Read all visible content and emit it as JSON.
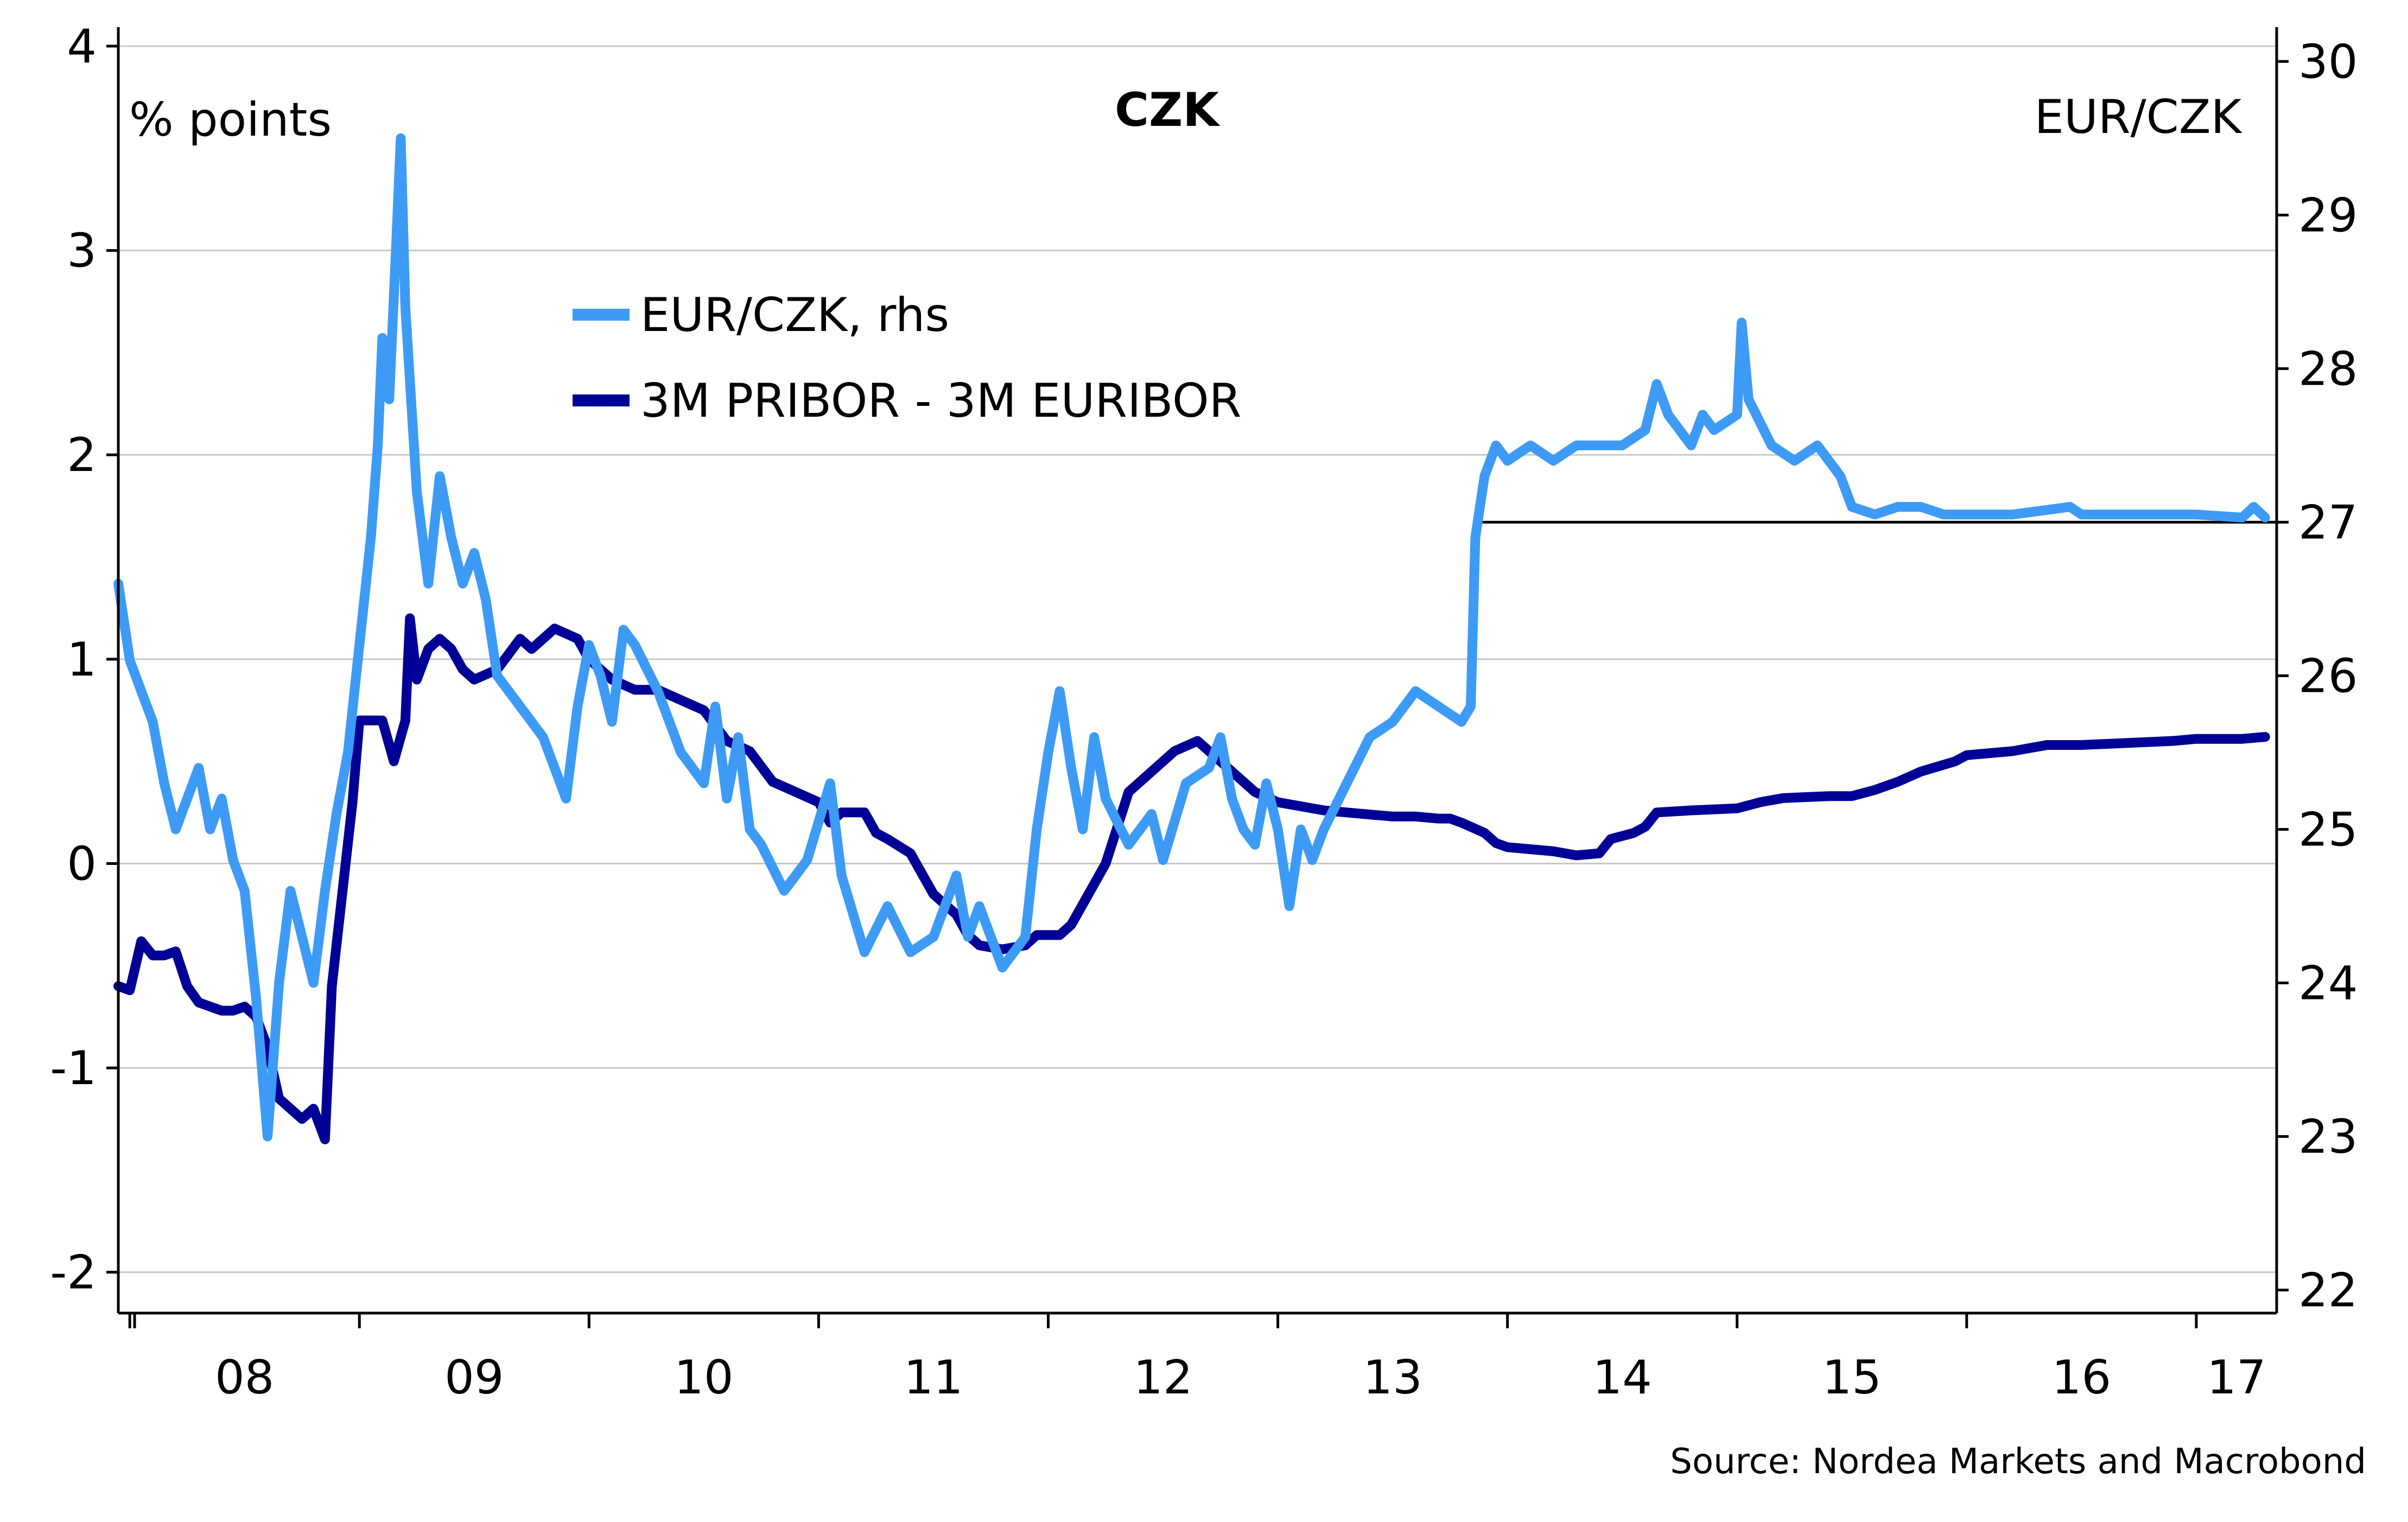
{
  "chart_data": {
    "type": "line",
    "title": "CZK",
    "left_axis_label": "% points",
    "right_axis_label": "EUR/CZK",
    "source": "Source: Nordea Markets and Macrobond",
    "grid": true,
    "legend_position": "top-left",
    "x_tick_labels": [
      "08",
      "09",
      "10",
      "11",
      "12",
      "13",
      "14",
      "15",
      "16",
      "17"
    ],
    "x_range": [
      2007.95,
      2017.35
    ],
    "y_left_ticks": [
      "4",
      "3",
      "2",
      "1",
      "0",
      "-1",
      "-2"
    ],
    "y_left_range": [
      -2.2,
      4.0
    ],
    "y_right_ticks": [
      "30",
      "29",
      "28",
      "27",
      "26",
      "25",
      "24",
      "23",
      "22"
    ],
    "y_right_range": [
      21.85,
      30.1
    ],
    "reference_line": {
      "x_start": 2013.85,
      "x_end": 2017.35,
      "value": 27.0,
      "axis": "right"
    },
    "series": [
      {
        "name": "EUR/CZK, rhs",
        "axis": "right",
        "color": "#3d9bf5",
        "points": [
          [
            2007.95,
            26.6
          ],
          [
            2008.0,
            26.1
          ],
          [
            2008.05,
            25.9
          ],
          [
            2008.1,
            25.7
          ],
          [
            2008.15,
            25.3
          ],
          [
            2008.2,
            25.0
          ],
          [
            2008.25,
            25.2
          ],
          [
            2008.3,
            25.4
          ],
          [
            2008.35,
            25.0
          ],
          [
            2008.4,
            25.2
          ],
          [
            2008.45,
            24.8
          ],
          [
            2008.5,
            24.6
          ],
          [
            2008.55,
            23.9
          ],
          [
            2008.6,
            23.0
          ],
          [
            2008.65,
            24.0
          ],
          [
            2008.7,
            24.6
          ],
          [
            2008.75,
            24.3
          ],
          [
            2008.8,
            24.0
          ],
          [
            2008.85,
            24.6
          ],
          [
            2008.9,
            25.1
          ],
          [
            2008.95,
            25.5
          ],
          [
            2009.0,
            26.2
          ],
          [
            2009.05,
            26.9
          ],
          [
            2009.08,
            27.5
          ],
          [
            2009.1,
            28.2
          ],
          [
            2009.13,
            27.8
          ],
          [
            2009.16,
            28.8
          ],
          [
            2009.18,
            29.5
          ],
          [
            2009.2,
            28.4
          ],
          [
            2009.25,
            27.2
          ],
          [
            2009.3,
            26.6
          ],
          [
            2009.35,
            27.3
          ],
          [
            2009.4,
            26.9
          ],
          [
            2009.45,
            26.6
          ],
          [
            2009.5,
            26.8
          ],
          [
            2009.55,
            26.5
          ],
          [
            2009.6,
            26.0
          ],
          [
            2009.7,
            25.8
          ],
          [
            2009.8,
            25.6
          ],
          [
            2009.9,
            25.2
          ],
          [
            2009.95,
            25.8
          ],
          [
            2010.0,
            26.2
          ],
          [
            2010.05,
            26.0
          ],
          [
            2010.1,
            25.7
          ],
          [
            2010.15,
            26.3
          ],
          [
            2010.2,
            26.2
          ],
          [
            2010.3,
            25.9
          ],
          [
            2010.4,
            25.5
          ],
          [
            2010.5,
            25.3
          ],
          [
            2010.55,
            25.8
          ],
          [
            2010.6,
            25.2
          ],
          [
            2010.65,
            25.6
          ],
          [
            2010.7,
            25.0
          ],
          [
            2010.75,
            24.9
          ],
          [
            2010.85,
            24.6
          ],
          [
            2010.95,
            24.8
          ],
          [
            2011.05,
            25.3
          ],
          [
            2011.1,
            24.7
          ],
          [
            2011.2,
            24.2
          ],
          [
            2011.3,
            24.5
          ],
          [
            2011.4,
            24.2
          ],
          [
            2011.5,
            24.3
          ],
          [
            2011.6,
            24.7
          ],
          [
            2011.65,
            24.3
          ],
          [
            2011.7,
            24.5
          ],
          [
            2011.8,
            24.1
          ],
          [
            2011.9,
            24.3
          ],
          [
            2011.95,
            25.0
          ],
          [
            2012.0,
            25.5
          ],
          [
            2012.05,
            25.9
          ],
          [
            2012.1,
            25.4
          ],
          [
            2012.15,
            25.0
          ],
          [
            2012.2,
            25.6
          ],
          [
            2012.25,
            25.2
          ],
          [
            2012.35,
            24.9
          ],
          [
            2012.45,
            25.1
          ],
          [
            2012.5,
            24.8
          ],
          [
            2012.6,
            25.3
          ],
          [
            2012.7,
            25.4
          ],
          [
            2012.75,
            25.6
          ],
          [
            2012.8,
            25.2
          ],
          [
            2012.85,
            25.0
          ],
          [
            2012.9,
            24.9
          ],
          [
            2012.95,
            25.3
          ],
          [
            2013.0,
            25.0
          ],
          [
            2013.05,
            24.5
          ],
          [
            2013.1,
            25.0
          ],
          [
            2013.15,
            24.8
          ],
          [
            2013.2,
            25.0
          ],
          [
            2013.3,
            25.3
          ],
          [
            2013.4,
            25.6
          ],
          [
            2013.5,
            25.7
          ],
          [
            2013.6,
            25.9
          ],
          [
            2013.7,
            25.8
          ],
          [
            2013.8,
            25.7
          ],
          [
            2013.84,
            25.8
          ],
          [
            2013.86,
            26.9
          ],
          [
            2013.9,
            27.3
          ],
          [
            2013.95,
            27.5
          ],
          [
            2014.0,
            27.4
          ],
          [
            2014.1,
            27.5
          ],
          [
            2014.2,
            27.4
          ],
          [
            2014.3,
            27.5
          ],
          [
            2014.4,
            27.5
          ],
          [
            2014.5,
            27.5
          ],
          [
            2014.6,
            27.6
          ],
          [
            2014.65,
            27.9
          ],
          [
            2014.7,
            27.7
          ],
          [
            2014.8,
            27.5
          ],
          [
            2014.85,
            27.7
          ],
          [
            2014.9,
            27.6
          ],
          [
            2015.0,
            27.7
          ],
          [
            2015.02,
            28.3
          ],
          [
            2015.05,
            27.8
          ],
          [
            2015.15,
            27.5
          ],
          [
            2015.25,
            27.4
          ],
          [
            2015.35,
            27.5
          ],
          [
            2015.45,
            27.3
          ],
          [
            2015.5,
            27.1
          ],
          [
            2015.6,
            27.05
          ],
          [
            2015.7,
            27.1
          ],
          [
            2015.8,
            27.1
          ],
          [
            2015.9,
            27.05
          ],
          [
            2016.0,
            27.05
          ],
          [
            2016.2,
            27.05
          ],
          [
            2016.45,
            27.1
          ],
          [
            2016.5,
            27.05
          ],
          [
            2016.8,
            27.05
          ],
          [
            2017.0,
            27.05
          ],
          [
            2017.2,
            27.03
          ],
          [
            2017.25,
            27.1
          ],
          [
            2017.3,
            27.03
          ]
        ]
      },
      {
        "name": "3M PRIBOR - 3M EURIBOR",
        "axis": "left",
        "color": "#000096",
        "points": [
          [
            2007.95,
            -0.6
          ],
          [
            2008.0,
            -0.62
          ],
          [
            2008.05,
            -0.38
          ],
          [
            2008.1,
            -0.45
          ],
          [
            2008.15,
            -0.45
          ],
          [
            2008.2,
            -0.43
          ],
          [
            2008.25,
            -0.6
          ],
          [
            2008.3,
            -0.68
          ],
          [
            2008.35,
            -0.7
          ],
          [
            2008.4,
            -0.72
          ],
          [
            2008.45,
            -0.72
          ],
          [
            2008.5,
            -0.7
          ],
          [
            2008.55,
            -0.75
          ],
          [
            2008.6,
            -0.9
          ],
          [
            2008.65,
            -1.15
          ],
          [
            2008.7,
            -1.2
          ],
          [
            2008.75,
            -1.25
          ],
          [
            2008.8,
            -1.2
          ],
          [
            2008.85,
            -1.35
          ],
          [
            2008.88,
            -0.6
          ],
          [
            2008.92,
            -0.2
          ],
          [
            2008.97,
            0.3
          ],
          [
            2009.0,
            0.7
          ],
          [
            2009.05,
            0.7
          ],
          [
            2009.1,
            0.7
          ],
          [
            2009.15,
            0.5
          ],
          [
            2009.2,
            0.7
          ],
          [
            2009.22,
            1.2
          ],
          [
            2009.25,
            0.9
          ],
          [
            2009.3,
            1.05
          ],
          [
            2009.35,
            1.1
          ],
          [
            2009.4,
            1.05
          ],
          [
            2009.45,
            0.95
          ],
          [
            2009.5,
            0.9
          ],
          [
            2009.6,
            0.95
          ],
          [
            2009.7,
            1.1
          ],
          [
            2009.75,
            1.05
          ],
          [
            2009.85,
            1.15
          ],
          [
            2009.95,
            1.1
          ],
          [
            2010.0,
            1.0
          ],
          [
            2010.1,
            0.9
          ],
          [
            2010.2,
            0.85
          ],
          [
            2010.3,
            0.85
          ],
          [
            2010.4,
            0.8
          ],
          [
            2010.5,
            0.75
          ],
          [
            2010.6,
            0.6
          ],
          [
            2010.7,
            0.55
          ],
          [
            2010.8,
            0.4
          ],
          [
            2010.9,
            0.35
          ],
          [
            2011.0,
            0.3
          ],
          [
            2011.05,
            0.2
          ],
          [
            2011.1,
            0.25
          ],
          [
            2011.2,
            0.25
          ],
          [
            2011.25,
            0.15
          ],
          [
            2011.3,
            0.12
          ],
          [
            2011.4,
            0.05
          ],
          [
            2011.5,
            -0.15
          ],
          [
            2011.6,
            -0.25
          ],
          [
            2011.65,
            -0.35
          ],
          [
            2011.7,
            -0.4
          ],
          [
            2011.8,
            -0.42
          ],
          [
            2011.9,
            -0.4
          ],
          [
            2011.95,
            -0.35
          ],
          [
            2012.05,
            -0.35
          ],
          [
            2012.1,
            -0.3
          ],
          [
            2012.15,
            -0.2
          ],
          [
            2012.25,
            0.0
          ],
          [
            2012.35,
            0.35
          ],
          [
            2012.45,
            0.45
          ],
          [
            2012.55,
            0.55
          ],
          [
            2012.65,
            0.6
          ],
          [
            2012.75,
            0.5
          ],
          [
            2012.8,
            0.45
          ],
          [
            2012.9,
            0.35
          ],
          [
            2013.0,
            0.3
          ],
          [
            2013.1,
            0.28
          ],
          [
            2013.2,
            0.26
          ],
          [
            2013.3,
            0.25
          ],
          [
            2013.4,
            0.24
          ],
          [
            2013.5,
            0.23
          ],
          [
            2013.6,
            0.23
          ],
          [
            2013.7,
            0.22
          ],
          [
            2013.75,
            0.22
          ],
          [
            2013.8,
            0.2
          ],
          [
            2013.9,
            0.15
          ],
          [
            2013.95,
            0.1
          ],
          [
            2014.0,
            0.08
          ],
          [
            2014.1,
            0.07
          ],
          [
            2014.2,
            0.06
          ],
          [
            2014.3,
            0.04
          ],
          [
            2014.4,
            0.05
          ],
          [
            2014.45,
            0.12
          ],
          [
            2014.55,
            0.15
          ],
          [
            2014.6,
            0.18
          ],
          [
            2014.65,
            0.25
          ],
          [
            2014.8,
            0.26
          ],
          [
            2015.0,
            0.27
          ],
          [
            2015.1,
            0.3
          ],
          [
            2015.2,
            0.32
          ],
          [
            2015.4,
            0.33
          ],
          [
            2015.5,
            0.33
          ],
          [
            2015.6,
            0.36
          ],
          [
            2015.7,
            0.4
          ],
          [
            2015.8,
            0.45
          ],
          [
            2015.95,
            0.5
          ],
          [
            2016.0,
            0.53
          ],
          [
            2016.2,
            0.55
          ],
          [
            2016.35,
            0.58
          ],
          [
            2016.5,
            0.58
          ],
          [
            2016.7,
            0.59
          ],
          [
            2016.9,
            0.6
          ],
          [
            2017.0,
            0.61
          ],
          [
            2017.2,
            0.61
          ],
          [
            2017.3,
            0.62
          ]
        ]
      }
    ]
  }
}
